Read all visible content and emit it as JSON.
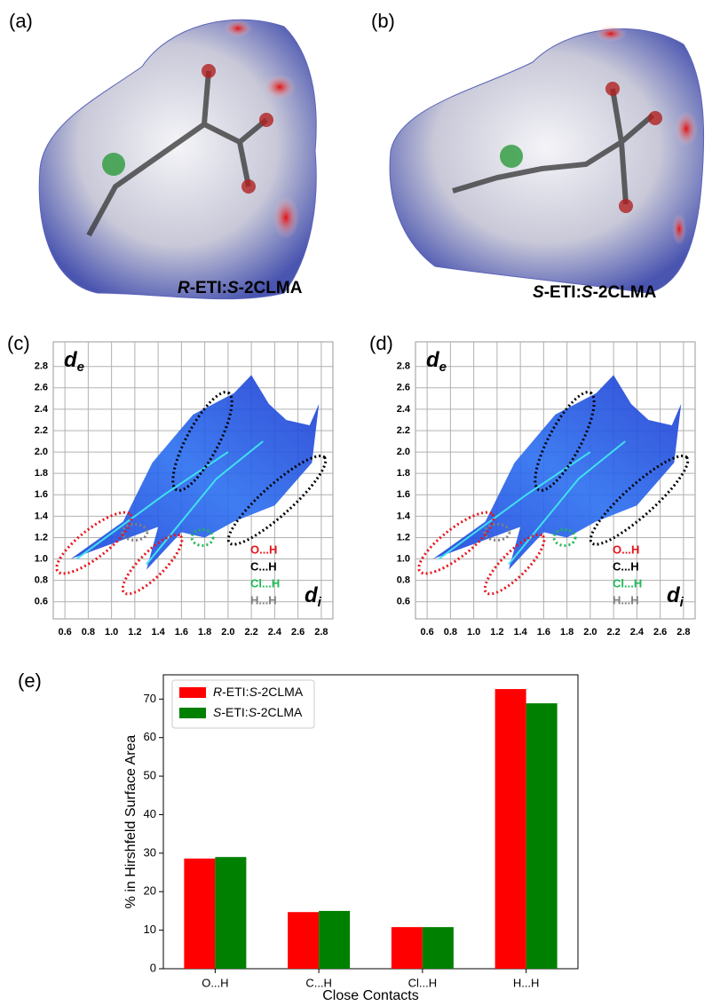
{
  "panels": [
    {
      "label": "(a)",
      "caption": [
        {
          "text": "R",
          "italic": true
        },
        {
          "text": "-ETI:",
          "italic": false
        },
        {
          "text": "S",
          "italic": true
        },
        {
          "text": "-2CLMA",
          "italic": false
        }
      ]
    },
    {
      "label": "(b)",
      "caption": [
        {
          "text": "S",
          "italic": true
        },
        {
          "text": "-ETI:",
          "italic": false
        },
        {
          "text": "S",
          "italic": true
        },
        {
          "text": "-2CLMA",
          "italic": false
        }
      ]
    }
  ],
  "fingerprints": [
    {
      "label": "(c)",
      "x_label": {
        "base": "d",
        "sub": "i"
      },
      "y_label": {
        "base": "d",
        "sub": "e"
      },
      "xlim": [
        0.5,
        2.9
      ],
      "ylim": [
        0.44,
        3.03
      ],
      "xticks": [
        0.6,
        0.8,
        {
          "value": 1,
          "label": "1.0"
        },
        1.2,
        1.4,
        1.6,
        1.8,
        {
          "value": 2,
          "label": "2.0"
        },
        2.2,
        2.4,
        2.6,
        2.8
      ],
      "yticks": [
        0.6,
        0.8,
        {
          "value": 1,
          "label": "1.0"
        },
        1.2,
        1.4,
        1.6,
        1.8,
        {
          "value": 2,
          "label": "2.0"
        },
        2.2,
        2.4,
        2.6,
        2.8
      ],
      "legend": [
        {
          "text": "O...H",
          "color": "#e8141c"
        },
        {
          "text": "C...H",
          "color": "#000000"
        },
        {
          "text": "Cl...H",
          "color": "#1db954"
        },
        {
          "text": "H...H",
          "color": "#808080"
        }
      ]
    },
    {
      "label": "(d)",
      "x_label": {
        "base": "d",
        "sub": "i"
      },
      "y_label": {
        "base": "d",
        "sub": "e"
      },
      "xlim": [
        0.5,
        2.9
      ],
      "ylim": [
        0.44,
        3.03
      ],
      "xticks": [
        0.6,
        0.8,
        {
          "value": 1,
          "label": "1.0"
        },
        1.2,
        1.4,
        1.6,
        1.8,
        {
          "value": 2,
          "label": "2.0"
        },
        2.2,
        2.4,
        2.6,
        2.8
      ],
      "yticks": [
        0.6,
        0.8,
        {
          "value": 1,
          "label": "1.0"
        },
        1.2,
        1.4,
        1.6,
        1.8,
        {
          "value": 2,
          "label": "2.0"
        },
        2.2,
        2.4,
        2.6,
        2.8
      ],
      "legend": [
        {
          "text": "O...H",
          "color": "#e8141c"
        },
        {
          "text": "C...H",
          "color": "#000000"
        },
        {
          "text": "Cl...H",
          "color": "#1db954"
        },
        {
          "text": "H...H",
          "color": "#808080"
        }
      ]
    }
  ],
  "chart_data": {
    "type": "bar",
    "panel_label": "(e)",
    "x_label": "Close Contacts",
    "y_label": "% in Hirshfeld Surface Area",
    "categories": [
      "O...H",
      "C...H",
      "Cl...H",
      "H...H"
    ],
    "series": [
      {
        "name": [
          {
            "text": "R",
            "italic": true
          },
          {
            "text": "-ETI:",
            "italic": false
          },
          {
            "text": "S",
            "italic": true
          },
          {
            "text": "-2CLMA",
            "italic": false
          }
        ],
        "color": "#ff0000",
        "values": [
          28.6,
          14.7,
          10.8,
          72.6
        ]
      },
      {
        "name": [
          {
            "text": "S",
            "italic": true
          },
          {
            "text": "-ETI:",
            "italic": false
          },
          {
            "text": "S",
            "italic": true
          },
          {
            "text": "-2CLMA",
            "italic": false
          }
        ],
        "color": "#008000",
        "values": [
          29.0,
          15.0,
          10.8,
          68.9
        ]
      }
    ],
    "ylim": [
      0,
      76.3
    ],
    "yticks": [
      0,
      10,
      20,
      30,
      40,
      50,
      60,
      70
    ],
    "legend": "upper left"
  }
}
